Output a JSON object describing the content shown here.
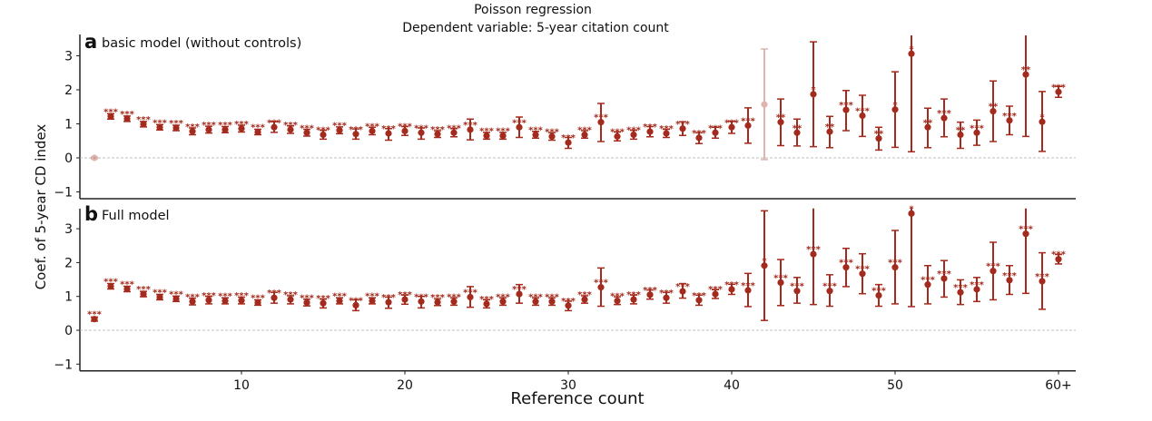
{
  "chart_data": {
    "type": "scatter",
    "title": "Poisson regression",
    "subtitle": "Dependent variable: 5-year citation count",
    "xlabel": "Reference count",
    "ylabel": "Coef. of 5-year CD index",
    "xlim": [
      0,
      61
    ],
    "ylim": [
      -1.2,
      3.6
    ],
    "xticks": [
      10,
      20,
      30,
      40,
      50,
      60
    ],
    "xtick_labels": [
      "10",
      "20",
      "30",
      "40",
      "50",
      "60+"
    ],
    "yticks": [
      -1,
      0,
      1,
      2,
      3
    ],
    "ytick_labels": [
      "−1",
      "0",
      "1",
      "2",
      "3"
    ],
    "reference_line": 0,
    "color": "#a32a1c",
    "panels": [
      {
        "letter": "a",
        "name": "basic model (without controls)",
        "x": [
          1,
          2,
          3,
          4,
          5,
          6,
          7,
          8,
          9,
          10,
          11,
          12,
          13,
          14,
          15,
          16,
          17,
          18,
          19,
          20,
          21,
          22,
          23,
          24,
          25,
          26,
          27,
          28,
          29,
          30,
          31,
          32,
          33,
          34,
          35,
          36,
          37,
          38,
          39,
          40,
          41,
          42,
          43,
          44,
          45,
          46,
          47,
          48,
          49,
          50,
          51,
          52,
          53,
          54,
          55,
          56,
          57,
          58,
          59,
          60
        ],
        "coef": [
          0,
          1.22,
          1.15,
          0.99,
          0.9,
          0.88,
          0.78,
          0.83,
          0.83,
          0.86,
          0.76,
          0.9,
          0.83,
          0.74,
          0.68,
          0.81,
          0.7,
          0.79,
          0.72,
          0.79,
          0.74,
          0.7,
          0.74,
          0.83,
          0.65,
          0.65,
          0.9,
          0.68,
          0.63,
          0.45,
          0.68,
          1.05,
          0.63,
          0.68,
          0.77,
          0.72,
          0.86,
          0.59,
          0.74,
          0.9,
          0.95,
          1.57,
          1.05,
          0.74,
          1.87,
          0.77,
          1.41,
          1.24,
          0.57,
          1.42,
          3.06,
          0.9,
          1.17,
          0.68,
          0.74,
          1.37,
          1.1,
          2.45,
          1.06,
          1.94
        ],
        "ci_low": [
          -0.02,
          1.14,
          1.07,
          0.91,
          0.82,
          0.8,
          0.68,
          0.73,
          0.74,
          0.76,
          0.68,
          0.75,
          0.72,
          0.64,
          0.55,
          0.71,
          0.55,
          0.68,
          0.52,
          0.66,
          0.55,
          0.6,
          0.62,
          0.53,
          0.55,
          0.55,
          0.6,
          0.58,
          0.52,
          0.28,
          0.58,
          0.48,
          0.5,
          0.55,
          0.62,
          0.6,
          0.66,
          0.42,
          0.58,
          0.72,
          0.43,
          -0.05,
          0.36,
          0.35,
          0.33,
          0.3,
          0.8,
          0.63,
          0.23,
          0.31,
          0.18,
          0.3,
          0.62,
          0.28,
          0.37,
          0.48,
          0.68,
          0.63,
          0.19,
          1.78
        ],
        "ci_high": [
          0.02,
          1.3,
          1.23,
          1.07,
          0.98,
          0.96,
          0.88,
          0.93,
          0.92,
          0.96,
          0.84,
          1.07,
          0.94,
          0.84,
          0.81,
          0.91,
          0.85,
          0.9,
          0.86,
          0.92,
          0.88,
          0.8,
          0.86,
          1.14,
          0.75,
          0.75,
          1.2,
          0.78,
          0.74,
          0.6,
          0.8,
          1.6,
          0.76,
          0.81,
          0.92,
          0.84,
          1.06,
          0.74,
          0.9,
          1.08,
          1.47,
          3.2,
          1.73,
          1.14,
          3.41,
          1.22,
          1.98,
          1.84,
          0.9,
          2.53,
          3.6,
          1.46,
          1.73,
          1.05,
          1.11,
          2.26,
          1.52,
          3.6,
          1.95,
          2.1
        ],
        "significance": [
          "",
          "***",
          "***",
          "***",
          "***",
          "***",
          "***",
          "***",
          "***",
          "***",
          "***",
          "***",
          "***",
          "***",
          "***",
          "***",
          "***",
          "***",
          "***",
          "***",
          "***",
          "***",
          "***",
          "***",
          "***",
          "***",
          "***",
          "***",
          "***",
          "***",
          "***",
          "***",
          "***",
          "***",
          "***",
          "***",
          "***",
          "***",
          "***",
          "***",
          "***",
          "",
          "**",
          "**",
          "*",
          "**",
          "***",
          "***",
          "**",
          "*",
          "*",
          "**",
          "***",
          "**",
          "***",
          "**",
          "***",
          "**",
          "*",
          "***"
        ],
        "faded": [
          1,
          42
        ]
      },
      {
        "letter": "b",
        "name": "Full model",
        "x": [
          1,
          2,
          3,
          4,
          5,
          6,
          7,
          8,
          9,
          10,
          11,
          12,
          13,
          14,
          15,
          16,
          17,
          18,
          19,
          20,
          21,
          22,
          23,
          24,
          25,
          26,
          27,
          28,
          29,
          30,
          31,
          32,
          33,
          34,
          35,
          36,
          37,
          38,
          39,
          40,
          41,
          42,
          43,
          44,
          45,
          46,
          47,
          48,
          49,
          50,
          51,
          52,
          53,
          54,
          55,
          56,
          57,
          58,
          59,
          60
        ],
        "coef": [
          0.33,
          1.3,
          1.22,
          1.07,
          0.98,
          0.93,
          0.85,
          0.89,
          0.87,
          0.88,
          0.82,
          0.96,
          0.91,
          0.82,
          0.8,
          0.87,
          0.74,
          0.87,
          0.83,
          0.91,
          0.85,
          0.83,
          0.85,
          0.98,
          0.78,
          0.85,
          1.07,
          0.85,
          0.85,
          0.73,
          0.91,
          1.27,
          0.87,
          0.91,
          1.05,
          0.96,
          1.15,
          0.89,
          1.07,
          1.21,
          1.18,
          1.91,
          1.41,
          1.16,
          2.25,
          1.16,
          1.86,
          1.67,
          1.03,
          1.86,
          3.45,
          1.35,
          1.53,
          1.12,
          1.21,
          1.75,
          1.48,
          2.85,
          1.45,
          2.1
        ],
        "ci_low": [
          0.27,
          1.22,
          1.14,
          0.99,
          0.9,
          0.85,
          0.75,
          0.78,
          0.78,
          0.78,
          0.74,
          0.8,
          0.78,
          0.72,
          0.66,
          0.78,
          0.58,
          0.78,
          0.65,
          0.77,
          0.66,
          0.73,
          0.74,
          0.68,
          0.66,
          0.74,
          0.8,
          0.74,
          0.74,
          0.58,
          0.8,
          0.71,
          0.76,
          0.78,
          0.92,
          0.8,
          0.95,
          0.74,
          0.94,
          1.06,
          0.7,
          0.29,
          0.73,
          0.8,
          0.76,
          0.71,
          1.29,
          1.08,
          0.71,
          0.78,
          0.7,
          0.78,
          0.98,
          0.76,
          0.85,
          0.9,
          1.06,
          1.09,
          0.62,
          1.96
        ],
        "ci_high": [
          0.39,
          1.38,
          1.3,
          1.15,
          1.06,
          1.01,
          0.95,
          1.0,
          0.96,
          0.98,
          0.9,
          1.12,
          1.02,
          0.92,
          0.92,
          0.96,
          0.9,
          0.96,
          0.98,
          1.04,
          1.0,
          0.93,
          0.96,
          1.29,
          0.9,
          0.96,
          1.35,
          0.96,
          0.96,
          0.86,
          1.02,
          1.84,
          0.99,
          1.04,
          1.19,
          1.12,
          1.38,
          1.04,
          1.2,
          1.36,
          1.68,
          3.53,
          2.09,
          1.56,
          3.6,
          1.64,
          2.42,
          2.26,
          1.35,
          2.95,
          3.6,
          1.91,
          2.06,
          1.49,
          1.56,
          2.6,
          1.91,
          3.6,
          2.29,
          2.24
        ],
        "significance": [
          "***",
          "***",
          "***",
          "***",
          "***",
          "***",
          "***",
          "***",
          "***",
          "***",
          "***",
          "***",
          "***",
          "***",
          "***",
          "***",
          "***",
          "***",
          "***",
          "***",
          "***",
          "***",
          "***",
          "***",
          "***",
          "***",
          "***",
          "***",
          "***",
          "***",
          "***",
          "***",
          "***",
          "***",
          "***",
          "***",
          "***",
          "***",
          "***",
          "***",
          "***",
          "*",
          "***",
          "***",
          "***",
          "***",
          "***",
          "***",
          "***",
          "***",
          "*",
          "***",
          "***",
          "***",
          "***",
          "***",
          "***",
          "***",
          "***",
          "***"
        ],
        "faded": []
      }
    ]
  }
}
